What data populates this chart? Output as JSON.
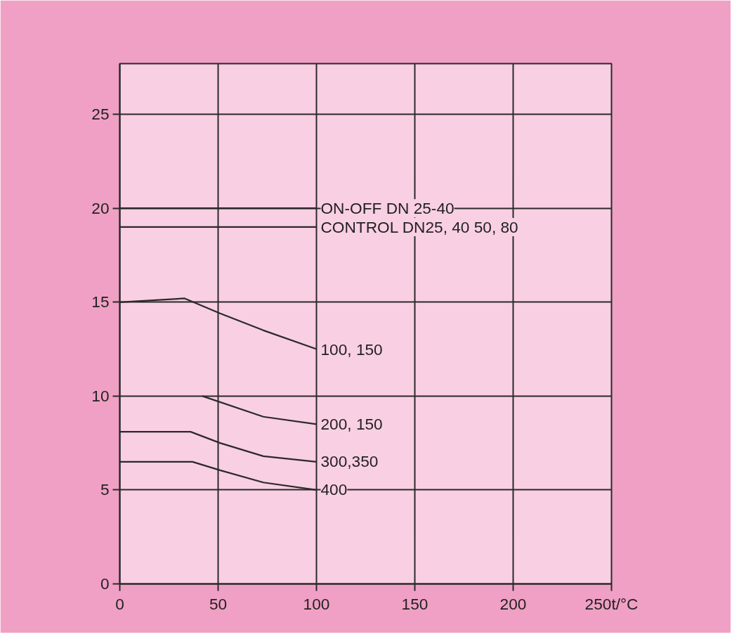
{
  "chart_data": {
    "type": "line",
    "xlim": [
      0,
      250
    ],
    "ylim": [
      0,
      27.7
    ],
    "xticks": [
      0,
      50,
      100,
      150,
      200,
      {
        "value": 250,
        "label": "250t/°C"
      }
    ],
    "yticks": [
      0,
      5,
      10,
      15,
      20,
      25
    ],
    "grid": true,
    "marker": "none",
    "line_style": "solid",
    "series": [
      {
        "name": "ON-OFF DN 25-40",
        "color": "#2a2a2a",
        "x": [
          0,
          100
        ],
        "values": [
          20,
          20
        ]
      },
      {
        "name": "CONTROL DN25, 40 50, 80",
        "color": "#2a2a2a",
        "x": [
          0,
          100
        ],
        "values": [
          19,
          19
        ]
      },
      {
        "name": "100, 150",
        "color": "#2a2a2a",
        "x": [
          0,
          33,
          51,
          73,
          100
        ],
        "values": [
          15,
          15.2,
          14.4,
          13.5,
          12.5
        ]
      },
      {
        "name": "200, 150",
        "color": "#2a2a2a",
        "x": [
          42,
          73,
          100
        ],
        "values": [
          10,
          8.9,
          8.5
        ]
      },
      {
        "name": "300,350",
        "color": "#2a2a2a",
        "x": [
          0,
          36,
          51,
          73,
          100
        ],
        "values": [
          8.1,
          8.1,
          7.5,
          6.8,
          6.5
        ]
      },
      {
        "name": "400",
        "color": "#2a2a2a",
        "x": [
          0,
          37,
          51,
          73,
          100
        ],
        "values": [
          6.5,
          6.5,
          6.05,
          5.4,
          5
        ]
      }
    ]
  }
}
